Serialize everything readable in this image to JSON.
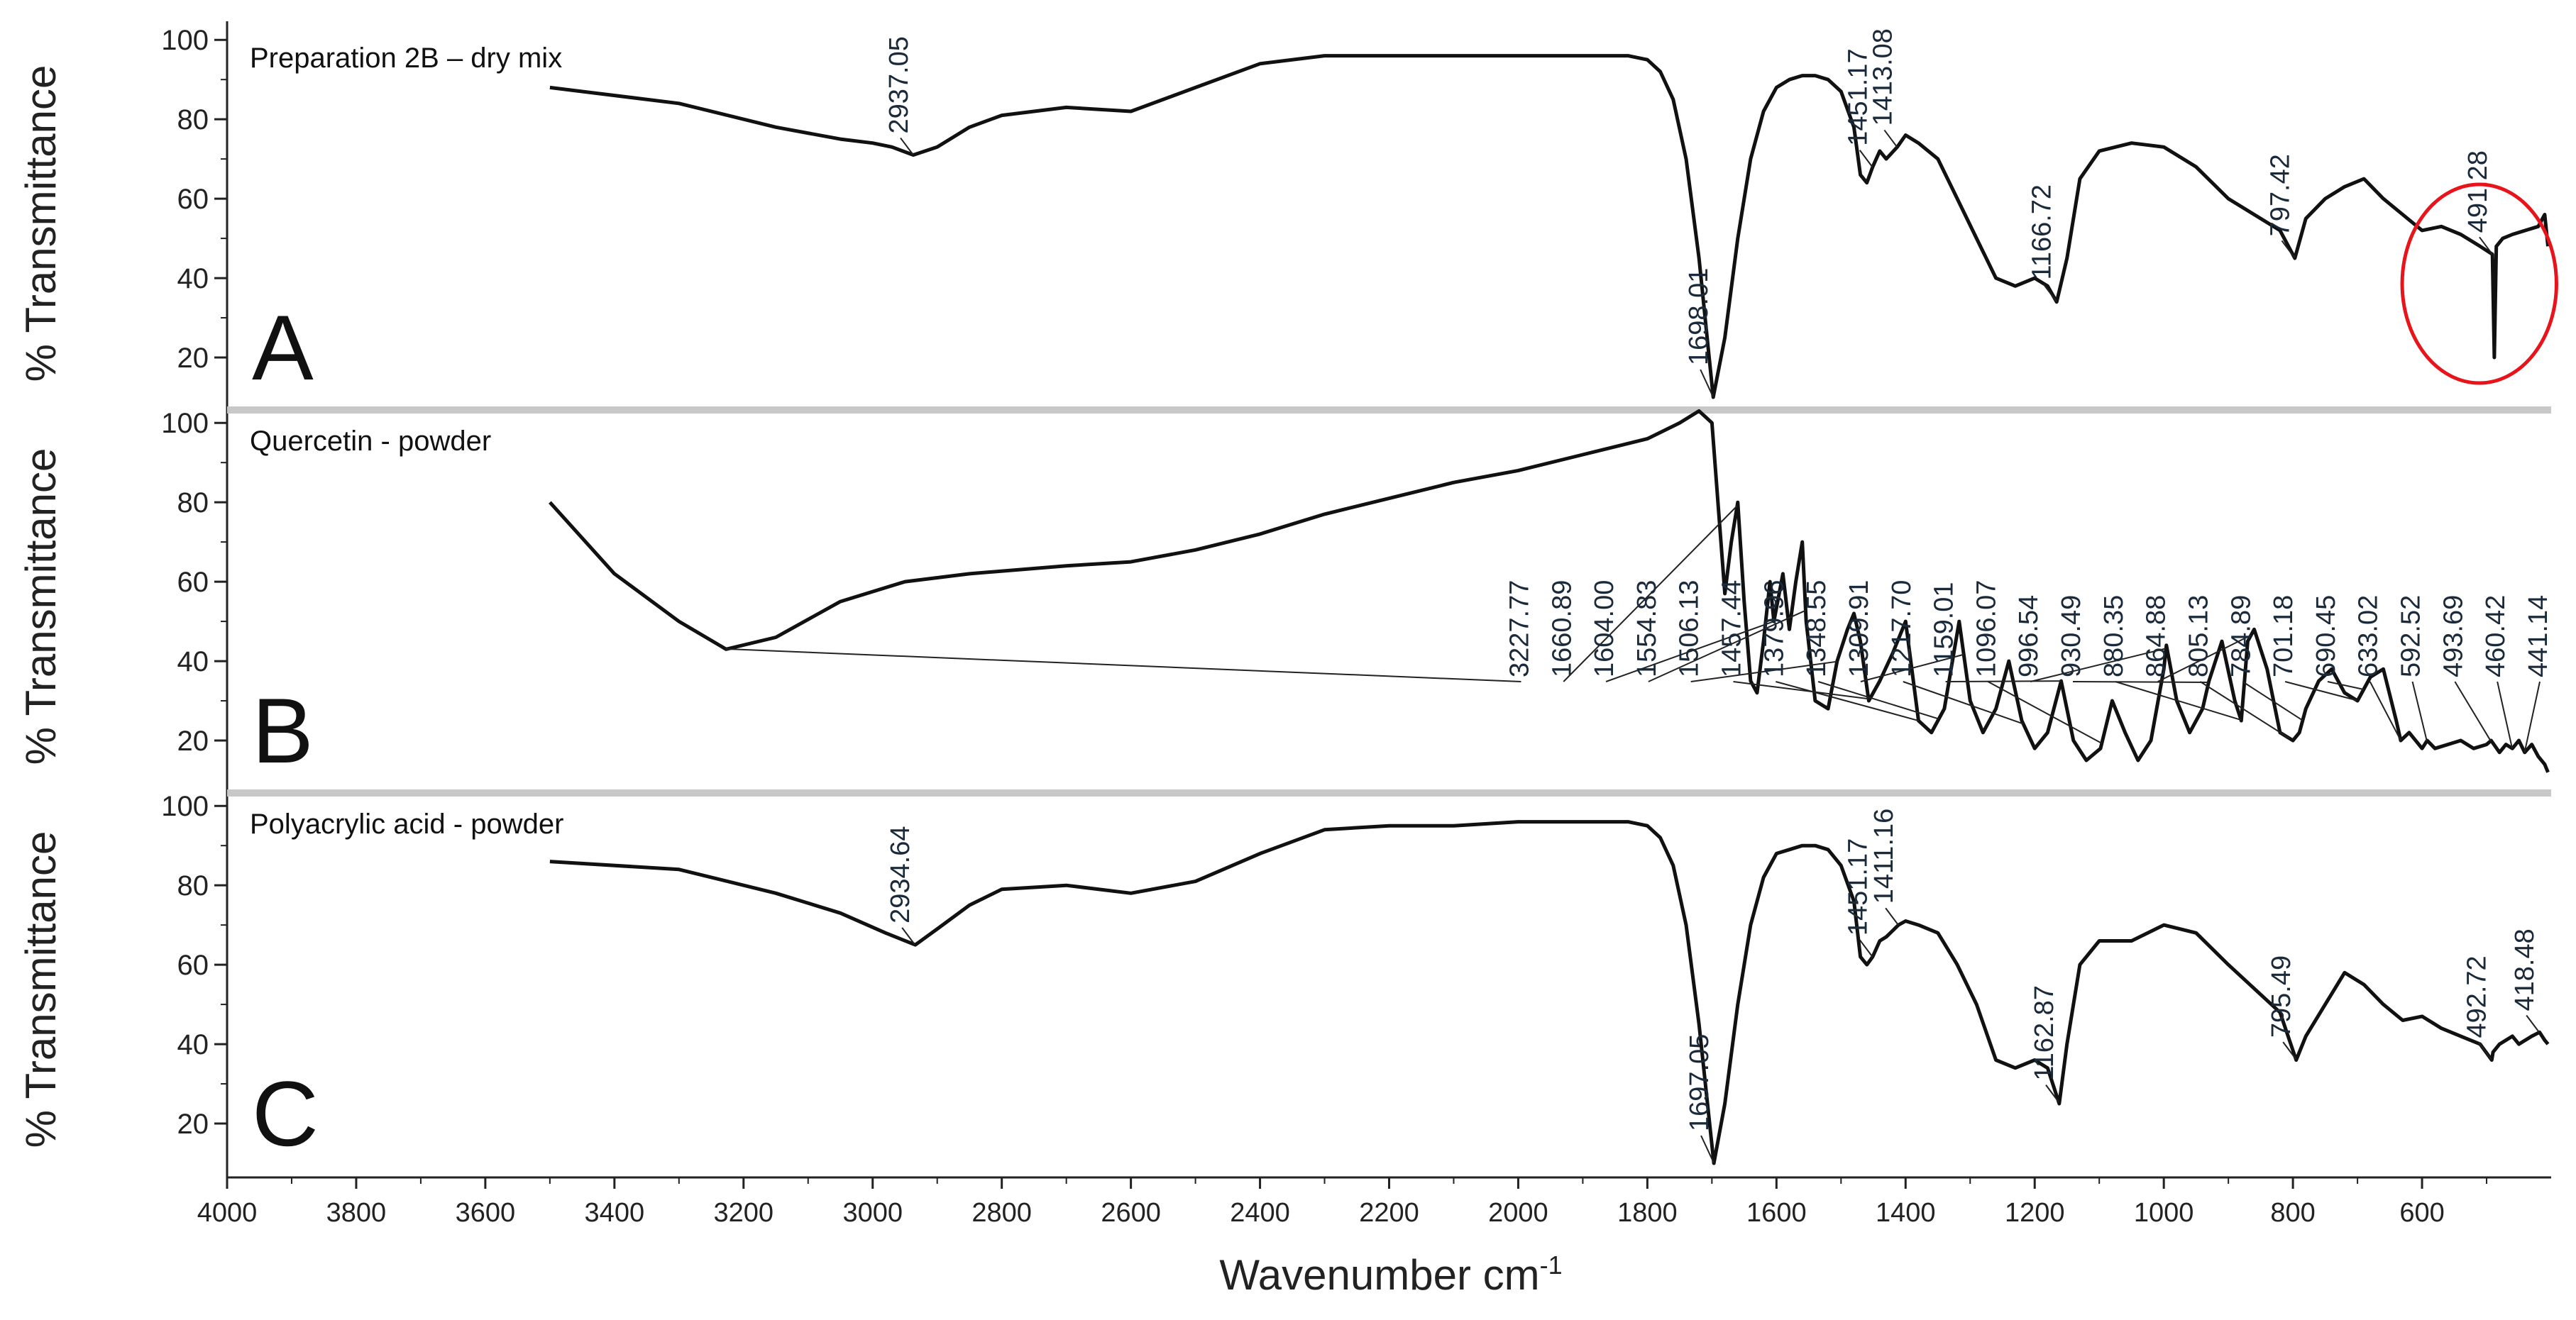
{
  "figure": {
    "xlabel": "Wavenumber cm",
    "xlabel_sup": "-1",
    "ylabel": "% Transmittance",
    "x_ticks": [
      4000,
      3800,
      3600,
      3400,
      3200,
      3000,
      2800,
      2600,
      2400,
      2200,
      2000,
      1800,
      1600,
      1400,
      1200,
      1000,
      800,
      600
    ],
    "y_ticks": [
      20,
      40,
      60,
      80,
      100
    ],
    "line_color": "#111111",
    "separator_color": "#c8c8c8",
    "highlight_color": "#e8141b"
  },
  "chart_data": [
    {
      "type": "line",
      "panel_letter": "A",
      "title": "Preparation 2B – dry mix",
      "xlabel": "Wavenumber cm-1",
      "ylabel": "% Transmittance",
      "xlim": [
        4000,
        400
      ],
      "ylim": [
        10,
        102
      ],
      "x": [
        3500,
        3300,
        3150,
        3050,
        3000,
        2970,
        2937,
        2900,
        2850,
        2800,
        2700,
        2600,
        2500,
        2400,
        2300,
        2200,
        2100,
        2000,
        1900,
        1830,
        1800,
        1780,
        1760,
        1740,
        1720,
        1698,
        1680,
        1660,
        1640,
        1620,
        1600,
        1580,
        1560,
        1540,
        1520,
        1500,
        1480,
        1470,
        1460,
        1451,
        1440,
        1430,
        1413,
        1400,
        1380,
        1350,
        1320,
        1290,
        1260,
        1230,
        1200,
        1180,
        1166,
        1150,
        1130,
        1100,
        1050,
        1000,
        950,
        900,
        860,
        820,
        797,
        780,
        750,
        720,
        690,
        660,
        630,
        600,
        570,
        540,
        510,
        491,
        488,
        485,
        475,
        460,
        440,
        420,
        410,
        405
      ],
      "y": [
        88,
        84,
        78,
        75,
        74,
        73,
        71,
        73,
        78,
        81,
        83,
        82,
        88,
        94,
        96,
        96,
        96,
        96,
        96,
        96,
        95,
        92,
        85,
        70,
        45,
        10,
        25,
        50,
        70,
        82,
        88,
        90,
        91,
        91,
        90,
        87,
        78,
        66,
        64,
        68,
        72,
        70,
        73,
        76,
        74,
        70,
        60,
        50,
        40,
        38,
        40,
        38,
        34,
        45,
        65,
        72,
        74,
        73,
        68,
        60,
        56,
        52,
        45,
        55,
        60,
        63,
        65,
        60,
        56,
        52,
        53,
        51,
        48,
        46,
        20,
        48,
        50,
        51,
        52,
        53,
        56,
        48
      ],
      "annotations": [
        {
          "label": "2937.05",
          "x": 2937.05
        },
        {
          "label": "1698.01",
          "x": 1698.01
        },
        {
          "label": "1451.17",
          "x": 1451.17
        },
        {
          "label": "1413.08",
          "x": 1413.08
        },
        {
          "label": "1166.72",
          "x": 1166.72
        },
        {
          "label": "797.42",
          "x": 797.42
        },
        {
          "label": "491.28",
          "x": 491.28
        }
      ],
      "highlight": {
        "shape": "circle",
        "x_range": [
          600,
          405
        ]
      }
    },
    {
      "type": "line",
      "panel_letter": "B",
      "title": "Quercetin  - powder",
      "xlabel": "Wavenumber cm-1",
      "ylabel": "% Transmittance",
      "xlim": [
        4000,
        400
      ],
      "ylim": [
        10,
        102
      ],
      "x": [
        3500,
        3400,
        3300,
        3227,
        3150,
        3050,
        2950,
        2850,
        2700,
        2600,
        2500,
        2400,
        2300,
        2200,
        2100,
        2000,
        1900,
        1800,
        1750,
        1720,
        1700,
        1680,
        1670,
        1660,
        1650,
        1640,
        1630,
        1620,
        1610,
        1604,
        1590,
        1580,
        1570,
        1560,
        1554,
        1540,
        1520,
        1506,
        1490,
        1480,
        1470,
        1457,
        1440,
        1420,
        1400,
        1380,
        1360,
        1340,
        1317,
        1300,
        1280,
        1260,
        1240,
        1220,
        1200,
        1180,
        1159,
        1140,
        1120,
        1098,
        1080,
        1060,
        1040,
        1020,
        1000,
        996,
        980,
        960,
        940,
        930,
        910,
        890,
        880,
        870,
        860,
        840,
        820,
        800,
        790,
        780,
        760,
        740,
        720,
        700,
        680,
        660,
        640,
        633,
        620,
        600,
        592,
        580,
        560,
        540,
        520,
        500,
        493,
        480,
        470,
        460,
        450,
        441,
        430,
        420,
        410,
        405
      ],
      "y": [
        80,
        62,
        50,
        43,
        46,
        55,
        60,
        62,
        64,
        65,
        68,
        72,
        77,
        81,
        85,
        88,
        92,
        96,
        100,
        103,
        100,
        57,
        70,
        80,
        55,
        35,
        32,
        45,
        60,
        50,
        62,
        48,
        60,
        70,
        50,
        30,
        28,
        40,
        48,
        52,
        45,
        30,
        35,
        42,
        50,
        25,
        22,
        28,
        50,
        30,
        22,
        28,
        40,
        25,
        18,
        22,
        35,
        20,
        15,
        18,
        30,
        22,
        15,
        20,
        38,
        44,
        30,
        22,
        28,
        35,
        45,
        30,
        25,
        45,
        48,
        38,
        22,
        20,
        22,
        28,
        35,
        38,
        32,
        30,
        36,
        38,
        25,
        20,
        22,
        18,
        20,
        18,
        19,
        20,
        18,
        19,
        20,
        17,
        19,
        18,
        20,
        17,
        19,
        16,
        14,
        12
      ],
      "annotations": [
        {
          "label": "3227.77",
          "x": 3227.77
        },
        {
          "label": "1660.89",
          "x": 1660.89
        },
        {
          "label": "1604.00",
          "x": 1604.0
        },
        {
          "label": "1554.83",
          "x": 1554.83
        },
        {
          "label": "1506.13",
          "x": 1506.13
        },
        {
          "label": "1457.44",
          "x": 1457.44
        },
        {
          "label": "1379.96",
          "x": 1379.96
        },
        {
          "label": "1348.55",
          "x": 1348.55
        },
        {
          "label": "1309.91",
          "x": 1309.91
        },
        {
          "label": "1217.70",
          "x": 1217.7
        },
        {
          "label": "1159.01",
          "x": 1159.01
        },
        {
          "label": "1096.07",
          "x": 1096.07
        },
        {
          "label": "996.54",
          "x": 996.54
        },
        {
          "label": "930.49",
          "x": 930.49
        },
        {
          "label": "880.35",
          "x": 880.35
        },
        {
          "label": "864.88",
          "x": 864.88
        },
        {
          "label": "805.13",
          "x": 805.13
        },
        {
          "label": "784.89",
          "x": 784.89
        },
        {
          "label": "701.18",
          "x": 701.18
        },
        {
          "label": "690.45",
          "x": 690.45
        },
        {
          "label": "633.02",
          "x": 633.02
        },
        {
          "label": "592.52",
          "x": 592.52
        },
        {
          "label": "493.69",
          "x": 493.69
        },
        {
          "label": "460.42",
          "x": 460.42
        },
        {
          "label": "441.14",
          "x": 441.14
        }
      ]
    },
    {
      "type": "line",
      "panel_letter": "C",
      "title": "Polyacrylic  acid - powder",
      "xlabel": "Wavenumber cm-1",
      "ylabel": "% Transmittance",
      "xlim": [
        4000,
        400
      ],
      "ylim": [
        10,
        102
      ],
      "x": [
        3500,
        3300,
        3150,
        3050,
        2980,
        2934,
        2900,
        2850,
        2800,
        2700,
        2600,
        2500,
        2400,
        2300,
        2200,
        2100,
        2000,
        1900,
        1830,
        1800,
        1780,
        1760,
        1740,
        1720,
        1697,
        1680,
        1660,
        1640,
        1620,
        1600,
        1580,
        1560,
        1540,
        1520,
        1500,
        1480,
        1470,
        1460,
        1451,
        1440,
        1430,
        1411,
        1400,
        1380,
        1350,
        1320,
        1290,
        1260,
        1230,
        1200,
        1180,
        1162,
        1150,
        1130,
        1100,
        1050,
        1000,
        950,
        900,
        860,
        820,
        795,
        780,
        750,
        720,
        690,
        660,
        630,
        600,
        570,
        540,
        510,
        492,
        490,
        480,
        470,
        460,
        450,
        440,
        430,
        418,
        410,
        405
      ],
      "y": [
        86,
        84,
        78,
        73,
        68,
        65,
        69,
        75,
        79,
        80,
        78,
        81,
        88,
        94,
        95,
        95,
        96,
        96,
        96,
        95,
        92,
        85,
        70,
        45,
        10,
        25,
        50,
        70,
        82,
        88,
        89,
        90,
        90,
        89,
        85,
        76,
        62,
        60,
        62,
        66,
        67,
        70,
        71,
        70,
        68,
        60,
        50,
        36,
        34,
        36,
        34,
        25,
        40,
        60,
        66,
        66,
        70,
        68,
        60,
        54,
        48,
        36,
        42,
        50,
        58,
        55,
        50,
        46,
        47,
        44,
        42,
        40,
        36,
        38,
        40,
        41,
        42,
        40,
        41,
        42,
        43,
        41,
        40
      ],
      "annotations": [
        {
          "label": "2934.64",
          "x": 2934.64
        },
        {
          "label": "1697.05",
          "x": 1697.05
        },
        {
          "label": "1451.17",
          "x": 1451.17
        },
        {
          "label": "1411.16",
          "x": 1411.16
        },
        {
          "label": "1162.87",
          "x": 1162.87
        },
        {
          "label": "795.49",
          "x": 795.49
        },
        {
          "label": "492.72",
          "x": 492.72
        },
        {
          "label": "418.48",
          "x": 418.48
        }
      ]
    }
  ]
}
